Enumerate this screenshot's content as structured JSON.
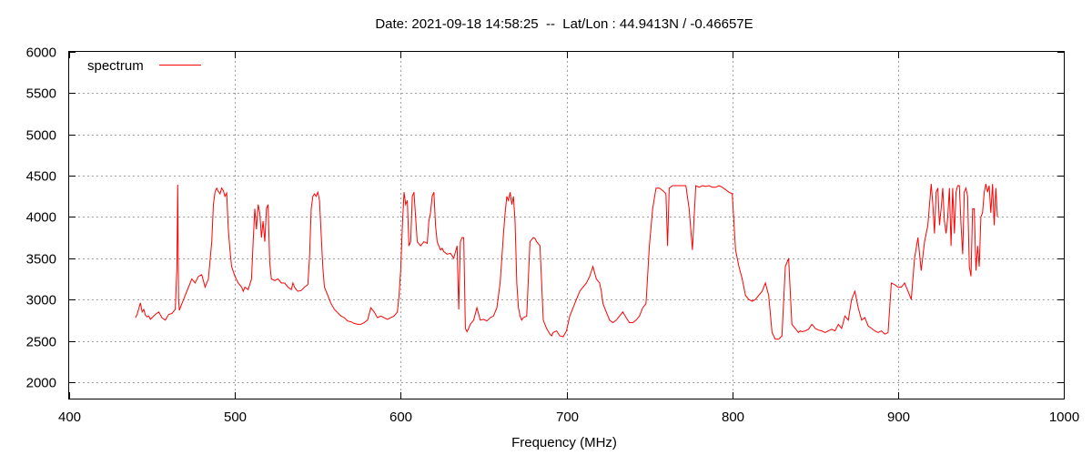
{
  "chart_data": {
    "type": "line",
    "title": "Date: 2021-09-18 14:58:25  --  Lat/Lon : 44.9413N / -0.46657E",
    "xlabel": "Frequency (MHz)",
    "ylabel": "",
    "xlim": [
      400,
      1000
    ],
    "ylim": [
      1800,
      6000
    ],
    "x_ticks": [
      400,
      500,
      600,
      700,
      800,
      900,
      1000
    ],
    "y_ticks": [
      2000,
      2500,
      3000,
      3500,
      4000,
      4500,
      5000,
      5500,
      6000
    ],
    "grid": true,
    "legend_position": "top-left",
    "series": [
      {
        "name": "spectrum",
        "color": "#ff0000",
        "x": [
          440,
          441,
          442,
          443,
          444,
          445,
          446,
          447,
          448,
          449,
          450,
          452,
          454,
          456,
          458,
          460,
          462,
          464,
          465,
          465.5,
          466,
          466.5,
          467,
          468,
          470,
          472,
          474,
          476,
          478,
          480,
          482,
          484,
          486,
          487,
          488,
          489,
          490,
          491,
          492,
          493,
          494,
          495,
          496,
          497,
          498,
          500,
          502,
          504,
          505,
          506,
          508,
          510,
          511,
          512,
          513,
          514,
          515,
          516,
          517,
          518,
          519,
          520,
          521,
          522,
          524,
          526,
          528,
          530,
          532,
          534,
          535,
          536,
          537,
          538,
          540,
          542,
          544,
          545,
          546,
          547,
          548,
          549,
          550,
          551,
          552,
          553,
          554,
          556,
          558,
          560,
          562,
          564,
          566,
          568,
          570,
          572,
          574,
          576,
          578,
          580,
          582,
          584,
          586,
          588,
          590,
          592,
          594,
          596,
          598,
          599,
          600,
          601,
          602,
          603,
          604,
          605,
          606,
          607,
          608,
          609,
          610,
          612,
          614,
          616,
          617,
          618,
          619,
          620,
          621,
          622,
          623,
          624,
          625,
          626,
          628,
          630,
          632,
          634,
          635,
          636,
          637,
          638,
          639,
          640,
          641,
          642,
          644,
          646,
          648,
          650,
          652,
          654,
          656,
          658,
          660,
          662,
          663,
          664,
          665,
          666,
          667,
          668,
          669,
          670,
          671,
          672,
          673,
          674,
          676,
          678,
          680,
          681,
          682,
          684,
          686,
          688,
          690,
          691,
          692,
          694,
          696,
          698,
          700,
          702,
          704,
          706,
          708,
          710,
          712,
          714,
          716,
          718,
          720,
          721,
          722,
          724,
          726,
          728,
          730,
          732,
          734,
          736,
          738,
          740,
          742,
          744,
          746,
          748,
          750,
          752,
          754,
          756,
          758,
          759,
          760,
          761,
          762,
          764,
          766,
          768,
          770,
          772,
          774,
          776,
          778,
          780,
          782,
          784,
          786,
          788,
          790,
          792,
          794,
          796,
          798,
          800,
          802,
          804,
          806,
          808,
          810,
          812,
          814,
          816,
          818,
          820,
          822,
          824,
          826,
          828,
          830,
          832,
          834,
          836,
          838,
          840,
          841,
          842,
          844,
          846,
          848,
          849,
          850,
          851,
          852,
          854,
          856,
          858,
          860,
          862,
          864,
          866,
          868,
          870,
          872,
          874,
          876,
          878,
          880,
          882,
          884,
          886,
          888,
          890,
          892,
          894,
          896,
          898,
          900,
          902,
          904,
          906,
          908,
          910,
          912,
          914,
          916,
          918,
          920,
          921,
          922,
          923,
          924,
          925,
          926,
          927,
          928,
          929,
          930,
          931,
          932,
          933,
          934,
          935,
          936,
          937,
          938,
          939,
          940,
          941,
          942,
          943,
          944,
          945,
          946,
          947,
          948,
          949,
          950,
          951,
          952,
          953,
          954,
          955,
          956,
          957,
          958,
          959,
          960
        ],
        "y": [
          2780,
          2820,
          2890,
          2960,
          2850,
          2880,
          2810,
          2790,
          2800,
          2760,
          2780,
          2820,
          2850,
          2780,
          2750,
          2820,
          2830,
          2880,
          3380,
          4390,
          3000,
          2870,
          2900,
          2950,
          3050,
          3150,
          3250,
          3200,
          3280,
          3300,
          3150,
          3250,
          3700,
          4150,
          4300,
          4350,
          4310,
          4280,
          4350,
          4320,
          4250,
          4290,
          3850,
          3600,
          3400,
          3280,
          3200,
          3150,
          3100,
          3150,
          3120,
          3250,
          3700,
          4100,
          3850,
          4150,
          4050,
          3750,
          3950,
          3700,
          4100,
          4150,
          3450,
          3250,
          3230,
          3250,
          3200,
          3200,
          3150,
          3120,
          3200,
          3150,
          3120,
          3100,
          3110,
          3150,
          3180,
          3500,
          4100,
          4250,
          4280,
          4250,
          4300,
          4200,
          3800,
          3400,
          3150,
          3050,
          2950,
          2880,
          2840,
          2800,
          2780,
          2740,
          2730,
          2710,
          2700,
          2700,
          2720,
          2750,
          2900,
          2850,
          2780,
          2800,
          2780,
          2760,
          2780,
          2800,
          2850,
          3050,
          3350,
          3900,
          4300,
          4150,
          4200,
          3650,
          3700,
          4250,
          4300,
          4000,
          3700,
          3650,
          3700,
          3680,
          3950,
          4050,
          4250,
          4300,
          3900,
          3700,
          3650,
          3600,
          3620,
          3580,
          3550,
          3560,
          3500,
          3650,
          2880,
          3700,
          3750,
          3750,
          2650,
          2610,
          2650,
          2700,
          2750,
          2900,
          2750,
          2760,
          2740,
          2780,
          2800,
          2900,
          3200,
          3800,
          4050,
          4250,
          4200,
          4300,
          4150,
          4250,
          3950,
          3200,
          2900,
          2800,
          2750,
          2780,
          2800,
          3700,
          3750,
          3740,
          3700,
          3650,
          2750,
          2650,
          2580,
          2560,
          2600,
          2620,
          2560,
          2550,
          2620,
          2800,
          2900,
          3000,
          3100,
          3150,
          3200,
          3280,
          3400,
          3250,
          3200,
          3100,
          2950,
          2850,
          2750,
          2720,
          2750,
          2800,
          2850,
          2780,
          2720,
          2720,
          2750,
          2800,
          2900,
          2950,
          3650,
          4100,
          4350,
          4350,
          4320,
          4300,
          4280,
          3650,
          4350,
          4380,
          4380,
          4380,
          4380,
          4380,
          4100,
          3600,
          4380,
          4360,
          4380,
          4370,
          4380,
          4360,
          4360,
          4380,
          4360,
          4330,
          4300,
          4280,
          3600,
          3400,
          3250,
          3050,
          3000,
          2980,
          3000,
          3050,
          3100,
          3200,
          3050,
          2600,
          2520,
          2520,
          2560,
          3400,
          3500,
          2700,
          2650,
          2600,
          2620,
          2610,
          2620,
          2640,
          2700,
          2680,
          2650,
          2640,
          2630,
          2620,
          2600,
          2620,
          2640,
          2620,
          2700,
          2650,
          2800,
          2750,
          3000,
          3100,
          2900,
          2750,
          2780,
          2680,
          2650,
          2620,
          2600,
          2620,
          2580,
          2600,
          3200,
          3180,
          3150,
          3150,
          3200,
          3100,
          3000,
          3500,
          3750,
          3350,
          3700,
          3900,
          4400,
          4150,
          3800,
          4300,
          4350,
          3900,
          4100,
          4350,
          3950,
          3800,
          4000,
          4350,
          3650,
          4350,
          3800,
          4300,
          4380,
          4380,
          3900,
          3550,
          4300,
          4350,
          4250,
          3400,
          3280,
          4100,
          4100,
          3350,
          3650,
          3400,
          4000,
          4050,
          4300,
          4400,
          4300,
          4380,
          4050,
          4400,
          3900,
          4350,
          4000
        ]
      }
    ]
  }
}
